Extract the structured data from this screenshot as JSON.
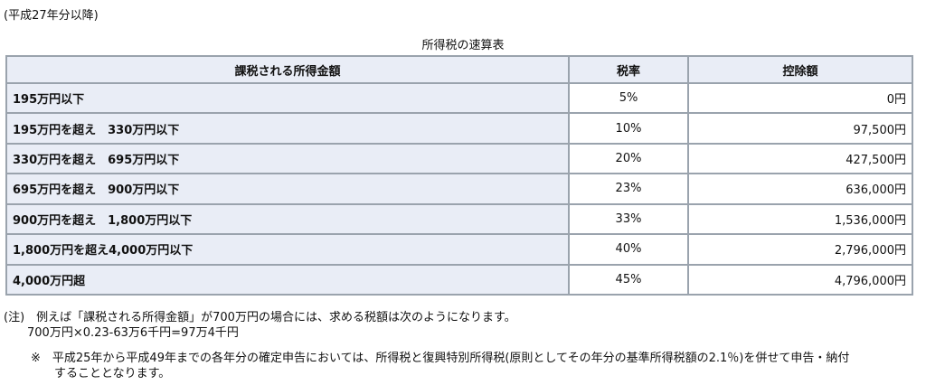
{
  "period_label": "(平成27年分以降)",
  "table_caption": "所得税の速算表",
  "headers": {
    "bracket": "課税される所得金額",
    "rate": "税率",
    "deduction": "控除額"
  },
  "rows": [
    {
      "bracket": "195万円以下",
      "rate": "5%",
      "deduction": "0円"
    },
    {
      "bracket": "195万円を超え　330万円以下",
      "rate": "10%",
      "deduction": "97,500円"
    },
    {
      "bracket": "330万円を超え　695万円以下",
      "rate": "20%",
      "deduction": "427,500円"
    },
    {
      "bracket": "695万円を超え　900万円以下",
      "rate": "23%",
      "deduction": "636,000円"
    },
    {
      "bracket": "900万円を超え　1,800万円以下",
      "rate": "33%",
      "deduction": "1,536,000円"
    },
    {
      "bracket": "1,800万円を超え4,000万円以下",
      "rate": "40%",
      "deduction": "2,796,000円"
    },
    {
      "bracket": "4,000万円超",
      "rate": "45%",
      "deduction": "4,796,000円"
    }
  ],
  "notes": {
    "line1": "(注)　例えば「課税される所得金額」が700万円の場合には、求める税額は次のようになります。",
    "line2": "700万円×0.23-63万6千円=97万4千円",
    "line3": "※　平成25年から平成49年までの各年分の確定申告においては、所得税と復興特別所得税(原則としてその年分の基準所得税額の2.1％)を併せて申告・納付",
    "line4": "することとなります。"
  }
}
